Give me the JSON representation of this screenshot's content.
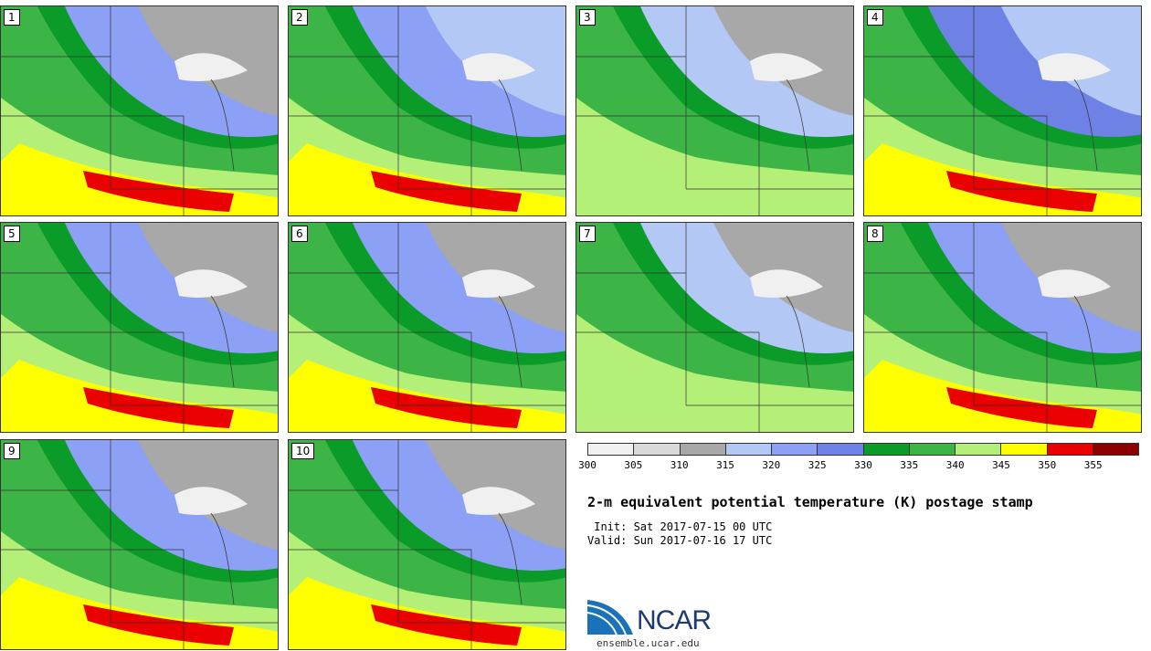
{
  "stamps": [
    {
      "label": "1"
    },
    {
      "label": "2"
    },
    {
      "label": "3"
    },
    {
      "label": "4"
    },
    {
      "label": "5"
    },
    {
      "label": "6"
    },
    {
      "label": "7"
    },
    {
      "label": "8"
    },
    {
      "label": "9"
    },
    {
      "label": "10"
    }
  ],
  "colorbar": {
    "colors": [
      "#f0f0f0",
      "#d9d9d9",
      "#a8a8a8",
      "#b4c8f5",
      "#8ca0f5",
      "#6e82e6",
      "#0a9b28",
      "#3cb446",
      "#b4f078",
      "#ffff00",
      "#eb0000",
      "#8c0000"
    ],
    "ticks": [
      "300",
      "305",
      "310",
      "315",
      "320",
      "325",
      "330",
      "335",
      "340",
      "345",
      "350",
      "355"
    ]
  },
  "title": "2-m equivalent potential temperature (K) postage stamp",
  "init": " Init: Sat 2017-07-15 00 UTC",
  "valid": "Valid: Sun 2017-07-16 17 UTC",
  "logo": {
    "text": "NCAR",
    "url": "ensemble.ucar.edu"
  }
}
